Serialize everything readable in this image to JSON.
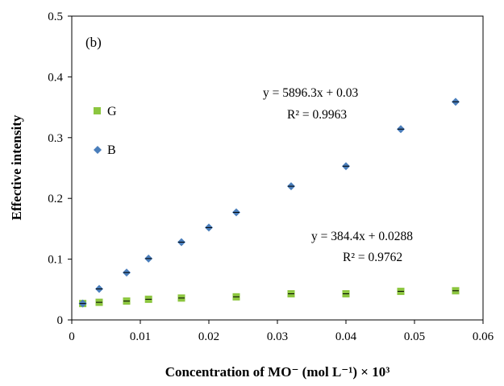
{
  "chart_data": {
    "type": "scatter",
    "panel_label": "(b)",
    "xlabel": "Concentration of MO⁻ (mol L⁻¹) × 10³",
    "ylabel": "Effective intensity",
    "xlim": [
      0,
      0.06
    ],
    "ylim": [
      0,
      0.5
    ],
    "x_ticks": [
      0,
      0.01,
      0.02,
      0.03,
      0.04,
      0.05,
      0.06
    ],
    "x_tick_labels": [
      "0",
      "0.01",
      "0.02",
      "0.03",
      "0.04",
      "0.05",
      "0.06"
    ],
    "y_ticks": [
      0,
      0.1,
      0.2,
      0.3,
      0.4,
      0.5
    ],
    "y_tick_labels": [
      "0",
      "0.1",
      "0.2",
      "0.3",
      "0.4",
      "0.5"
    ],
    "grid": false,
    "legend_position": "left",
    "series": [
      {
        "name": "G",
        "marker": "square",
        "color": "#8cc63f",
        "x": [
          0.0016,
          0.004,
          0.008,
          0.0112,
          0.016,
          0.024,
          0.032,
          0.04,
          0.048,
          0.056
        ],
        "y": [
          0.027,
          0.029,
          0.031,
          0.034,
          0.036,
          0.038,
          0.043,
          0.043,
          0.047,
          0.048
        ],
        "fit": {
          "slope": 384.4,
          "intercept": 0.0288,
          "x_range": [
            0.0016,
            0.056
          ]
        },
        "equation": "y = 384.4x +  0.0288",
        "r2": "R² = 0.9762"
      },
      {
        "name": "B",
        "marker": "diamond",
        "color": "#4a7ebb",
        "x": [
          0.0016,
          0.004,
          0.008,
          0.0112,
          0.016,
          0.02,
          0.024,
          0.032,
          0.04,
          0.048,
          0.056
        ],
        "y": [
          0.027,
          0.051,
          0.078,
          0.101,
          0.128,
          0.152,
          0.177,
          0.22,
          0.253,
          0.314,
          0.359
        ],
        "fit": {
          "slope": 5896.3,
          "intercept": 0.03,
          "x_range": [
            0.0016,
            0.056
          ]
        },
        "equation": "y = 5896.3x +  0.03",
        "r2": "R² = 0.9963"
      }
    ]
  }
}
